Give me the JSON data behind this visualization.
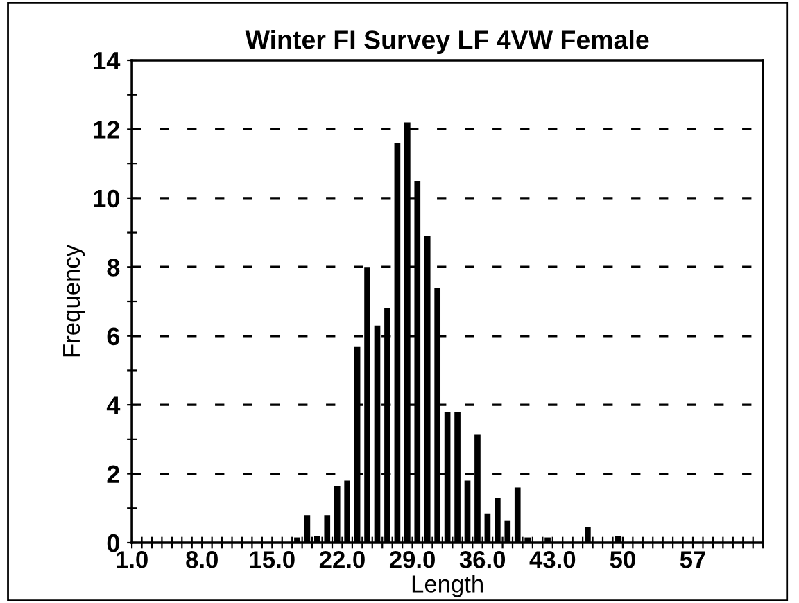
{
  "chart_data": {
    "type": "histogram",
    "title": "Winter FI Survey LF 4VW Female",
    "xlabel": "Length",
    "ylabel": "Frequency",
    "bins": [
      1,
      2,
      3,
      4,
      5,
      6,
      7,
      8,
      9,
      10,
      11,
      12,
      13,
      14,
      15,
      16,
      17,
      18,
      19,
      20,
      21,
      22,
      23,
      24,
      25,
      26,
      27,
      28,
      29,
      30,
      31,
      32,
      33,
      34,
      35,
      36,
      37,
      38,
      39,
      40,
      41,
      42,
      43,
      44,
      45,
      46,
      47,
      48,
      49,
      50,
      51,
      52,
      53,
      54,
      55,
      56,
      57,
      58,
      59,
      60,
      61,
      62,
      63,
      64
    ],
    "values": [
      0,
      0,
      0,
      0,
      0,
      0,
      0,
      0,
      0,
      0,
      0,
      0,
      0,
      0,
      0,
      0,
      0.15,
      0.8,
      0.2,
      0.8,
      1.65,
      1.8,
      5.7,
      8.0,
      6.3,
      6.8,
      11.6,
      12.2,
      10.5,
      8.9,
      7.4,
      3.8,
      3.8,
      1.8,
      3.15,
      0.85,
      1.3,
      0.65,
      1.6,
      0.15,
      0,
      0.15,
      0,
      0,
      0,
      0.45,
      0,
      0,
      0.2,
      0,
      0,
      0,
      0,
      0,
      0,
      0,
      0,
      0,
      0,
      0,
      0,
      0,
      0
    ],
    "color": "#000000",
    "xlim": [
      1,
      64
    ],
    "xticks": [
      {
        "value": 1,
        "label": "1.0"
      },
      {
        "value": 2,
        "label": null
      },
      {
        "value": 3,
        "label": null
      },
      {
        "value": 4,
        "label": null
      },
      {
        "value": 5,
        "label": null
      },
      {
        "value": 6,
        "label": null
      },
      {
        "value": 7,
        "label": null
      },
      {
        "value": 8,
        "label": "8.0"
      },
      {
        "value": 9,
        "label": null
      },
      {
        "value": 10,
        "label": null
      },
      {
        "value": 11,
        "label": null
      },
      {
        "value": 12,
        "label": null
      },
      {
        "value": 13,
        "label": null
      },
      {
        "value": 14,
        "label": null
      },
      {
        "value": 15,
        "label": "15.0"
      },
      {
        "value": 16,
        "label": null
      },
      {
        "value": 17,
        "label": null
      },
      {
        "value": 18,
        "label": null
      },
      {
        "value": 19,
        "label": null
      },
      {
        "value": 20,
        "label": null
      },
      {
        "value": 21,
        "label": null
      },
      {
        "value": 22,
        "label": "22.0"
      },
      {
        "value": 23,
        "label": null
      },
      {
        "value": 24,
        "label": null
      },
      {
        "value": 25,
        "label": null
      },
      {
        "value": 26,
        "label": null
      },
      {
        "value": 27,
        "label": null
      },
      {
        "value": 28,
        "label": null
      },
      {
        "value": 29,
        "label": "29.0"
      },
      {
        "value": 30,
        "label": null
      },
      {
        "value": 31,
        "label": null
      },
      {
        "value": 32,
        "label": null
      },
      {
        "value": 33,
        "label": null
      },
      {
        "value": 34,
        "label": null
      },
      {
        "value": 35,
        "label": null
      },
      {
        "value": 36,
        "label": "36.0"
      },
      {
        "value": 37,
        "label": null
      },
      {
        "value": 38,
        "label": null
      },
      {
        "value": 39,
        "label": null
      },
      {
        "value": 40,
        "label": null
      },
      {
        "value": 41,
        "label": null
      },
      {
        "value": 42,
        "label": null
      },
      {
        "value": 43,
        "label": "43.0"
      },
      {
        "value": 44,
        "label": null
      },
      {
        "value": 45,
        "label": null
      },
      {
        "value": 46,
        "label": null
      },
      {
        "value": 47,
        "label": null
      },
      {
        "value": 48,
        "label": null
      },
      {
        "value": 49,
        "label": null
      },
      {
        "value": 50,
        "label": "50"
      },
      {
        "value": 51,
        "label": null
      },
      {
        "value": 52,
        "label": null
      },
      {
        "value": 53,
        "label": null
      },
      {
        "value": 54,
        "label": null
      },
      {
        "value": 55,
        "label": null
      },
      {
        "value": 56,
        "label": null
      },
      {
        "value": 57,
        "label": "57"
      },
      {
        "value": 58,
        "label": null
      },
      {
        "value": 59,
        "label": null
      },
      {
        "value": 60,
        "label": null
      },
      {
        "value": 61,
        "label": null
      },
      {
        "value": 62,
        "label": null
      },
      {
        "value": 63,
        "label": null
      },
      {
        "value": 64,
        "label": null
      }
    ],
    "ylim": [
      0,
      14
    ],
    "yticks": [
      0,
      {
        "value": 1,
        "label": null
      },
      2,
      {
        "value": 3,
        "label": null
      },
      4,
      {
        "value": 5,
        "label": null
      },
      6,
      {
        "value": 7,
        "label": null
      },
      8,
      {
        "value": 9,
        "label": null
      },
      10,
      {
        "value": 11,
        "label": null
      },
      12,
      {
        "value": 13,
        "label": null
      },
      14
    ],
    "grid": "y",
    "line_style": "dashed",
    "legend": false
  }
}
